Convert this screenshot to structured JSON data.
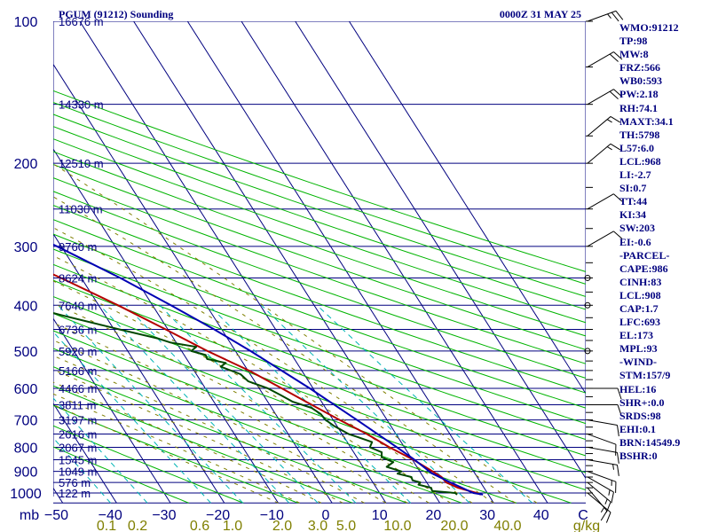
{
  "header": {
    "station": "PGUM (91212) Sounding",
    "time": "0000Z 31 MAY 25"
  },
  "chart_data": {
    "type": "line",
    "chart_kind": "skew-T log-P sounding",
    "p_unit": "mb",
    "mixing_ratio_unit": "g/kg",
    "pressure_ticks": [
      100,
      200,
      300,
      400,
      500,
      600,
      700,
      800,
      900,
      1000
    ],
    "temperature_ticks": [
      "−50",
      "−40",
      "−30",
      "−20",
      "−10",
      "0",
      "10",
      "20",
      "30",
      "40"
    ],
    "temperature_tick_values": [
      -50,
      -40,
      -30,
      -20,
      -10,
      0,
      10,
      20,
      30,
      40
    ],
    "temperature_axis_end_label": "C",
    "mixing_ratio_ticks": [
      "0.1",
      "0.2",
      "0.6",
      "1.0",
      "2.0",
      "3.0",
      "5.0",
      "10.0",
      "20.0",
      "40.0"
    ],
    "height_labels": [
      {
        "p": 100,
        "text": "16676 m"
      },
      {
        "p": 150,
        "text": "14330 m"
      },
      {
        "p": 200,
        "text": "12510 m"
      },
      {
        "p": 250,
        "text": "11030 m"
      },
      {
        "p": 300,
        "text": "9760 m"
      },
      {
        "p": 350,
        "text": "8624 m"
      },
      {
        "p": 400,
        "text": "7640 m"
      },
      {
        "p": 450,
        "text": "6736 m"
      },
      {
        "p": 500,
        "text": "5920 m"
      },
      {
        "p": 550,
        "text": "5166 m"
      },
      {
        "p": 600,
        "text": "4466 m"
      },
      {
        "p": 650,
        "text": "3811 m"
      },
      {
        "p": 700,
        "text": "3197 m"
      },
      {
        "p": 750,
        "text": "2616 m"
      },
      {
        "p": 800,
        "text": "2067 m"
      },
      {
        "p": 850,
        "text": "1545 m"
      },
      {
        "p": 900,
        "text": "1049 m"
      },
      {
        "p": 950,
        "text": "576 m"
      },
      {
        "p": 1000,
        "text": "122 m"
      }
    ],
    "series": [
      {
        "id": "temperature",
        "color": "#b40000",
        "points": [
          [
            1008,
            28.6
          ],
          [
            1000,
            28.0
          ],
          [
            975,
            25.2
          ],
          [
            950,
            23.6
          ],
          [
            925,
            23.4
          ],
          [
            900,
            22.4
          ],
          [
            850,
            20.2
          ],
          [
            800,
            17.2
          ],
          [
            750,
            14.6
          ],
          [
            700,
            11.2
          ],
          [
            650,
            7.8
          ],
          [
            600,
            4.2
          ],
          [
            550,
            0.2
          ],
          [
            500,
            -5.2
          ],
          [
            450,
            -10.4
          ],
          [
            400,
            -16.4
          ],
          [
            350,
            -23.8
          ],
          [
            300,
            -33.0
          ],
          [
            250,
            -43.2
          ],
          [
            200,
            -55.6
          ],
          [
            175,
            -63.0
          ],
          [
            150,
            -70.4
          ],
          [
            125,
            -77.6
          ],
          [
            100,
            -82.2
          ]
        ]
      },
      {
        "id": "dewpoint",
        "color": "#004800",
        "points": [
          [
            1008,
            24.2
          ],
          [
            1000,
            24.0
          ],
          [
            990,
            20.0
          ],
          [
            975,
            20.2
          ],
          [
            960,
            18.2
          ],
          [
            950,
            18.8
          ],
          [
            940,
            17.6
          ],
          [
            925,
            17.8
          ],
          [
            910,
            15.6
          ],
          [
            900,
            16.6
          ],
          [
            880,
            14.4
          ],
          [
            860,
            16.2
          ],
          [
            850,
            15.4
          ],
          [
            840,
            14.6
          ],
          [
            820,
            15.2
          ],
          [
            800,
            13.6
          ],
          [
            780,
            14.6
          ],
          [
            760,
            12.4
          ],
          [
            750,
            11.2
          ],
          [
            720,
            9.4
          ],
          [
            700,
            8.6
          ],
          [
            680,
            8.4
          ],
          [
            660,
            7.4
          ],
          [
            640,
            4.6
          ],
          [
            620,
            3.2
          ],
          [
            600,
            1.6
          ],
          [
            580,
            -1.2
          ],
          [
            560,
            -1.8
          ],
          [
            540,
            -4.6
          ],
          [
            530,
            -3.2
          ],
          [
            520,
            -6.2
          ],
          [
            510,
            -6.0
          ],
          [
            500,
            -8.2
          ],
          [
            490,
            -6.8
          ],
          [
            480,
            -11.0
          ],
          [
            470,
            -13.0
          ],
          [
            450,
            -19.0
          ],
          [
            420,
            -28.0
          ],
          [
            400,
            -34.0
          ],
          [
            350,
            -41.0
          ],
          [
            300,
            -47.5
          ],
          [
            250,
            -64.0
          ],
          [
            200,
            -81.0
          ],
          [
            175,
            -84.0
          ],
          [
            150,
            -85.0
          ],
          [
            125,
            -82.0
          ],
          [
            110,
            -77.0
          ],
          [
            100,
            -75.0
          ]
        ]
      },
      {
        "id": "parcel",
        "color": "#0000b4",
        "points": [
          [
            1008,
            29.0
          ],
          [
            1000,
            27.4
          ],
          [
            950,
            24.4
          ],
          [
            908,
            22.0
          ],
          [
            850,
            20.4
          ],
          [
            800,
            18.6
          ],
          [
            700,
            14.4
          ],
          [
            600,
            9.4
          ],
          [
            500,
            2.8
          ],
          [
            450,
            -1.4
          ],
          [
            400,
            -6.6
          ],
          [
            350,
            -12.8
          ],
          [
            300,
            -20.8
          ],
          [
            250,
            -31.0
          ],
          [
            200,
            -45.0
          ],
          [
            173,
            -54.5
          ],
          [
            150,
            -63.8
          ],
          [
            125,
            -75.0
          ],
          [
            110,
            -82.0
          ]
        ]
      }
    ],
    "wind_barbs": [
      {
        "p": 1000,
        "dir": 130,
        "spd": 10
      },
      {
        "p": 975,
        "dir": 140,
        "spd": 15
      },
      {
        "p": 950,
        "dir": 130,
        "spd": 15
      },
      {
        "p": 925,
        "dir": 120,
        "spd": 15
      },
      {
        "p": 900,
        "dir": 110,
        "spd": 15
      },
      {
        "p": 850,
        "dir": 100,
        "spd": 15
      },
      {
        "p": 800,
        "dir": 100,
        "spd": 10
      },
      {
        "p": 750,
        "dir": 110,
        "spd": 10
      },
      {
        "p": 700,
        "dir": 100,
        "spd": 10
      },
      {
        "p": 650,
        "dir": 90,
        "spd": 10
      },
      {
        "p": 600,
        "dir": 90,
        "spd": 10
      },
      {
        "p": 500,
        "dir": 0,
        "spd": 0
      },
      {
        "p": 400,
        "dir": 0,
        "spd": 0
      },
      {
        "p": 350,
        "dir": 0,
        "spd": 0
      },
      {
        "p": 300,
        "dir": 60,
        "spd": 10
      },
      {
        "p": 250,
        "dir": 60,
        "spd": 10
      },
      {
        "p": 200,
        "dir": 50,
        "spd": 15
      },
      {
        "p": 175,
        "dir": 50,
        "spd": 15
      },
      {
        "p": 150,
        "dir": 60,
        "spd": 20
      },
      {
        "p": 125,
        "dir": 60,
        "spd": 20
      },
      {
        "p": 100,
        "dir": 70,
        "spd": 25
      }
    ],
    "colors": {
      "isobars_and_isotherms": "#00007f",
      "dry_adiabats": "#00b400",
      "moist_adiabats": "#7f7f00",
      "mixing_ratio": "#00b4b4",
      "text": "#00007f"
    }
  },
  "stats": [
    "WMO:91212",
    "TP:98",
    "MW:8",
    "FRZ:566",
    "WB0:593",
    "PW:2.18",
    "RH:74.1",
    "MAXT:34.1",
    "TH:5798",
    "L57:6.0",
    "LCL:968",
    "LI:-2.7",
    "SI:0.7",
    "TT:44",
    "KI:34",
    "SW:203",
    "EI:-0.6",
    "-PARCEL-",
    "CAPE:986",
    "CINH:83",
    "LCL:908",
    "CAP:1.7",
    "LFC:693",
    "EL:173",
    "MPL:93",
    "-WIND-",
    "STM:157/9",
    "HEL:16",
    "SHR+:0.0",
    "SRDS:98",
    "EHI:0.1",
    "BRN:14549.9",
    "BSHR:0"
  ]
}
